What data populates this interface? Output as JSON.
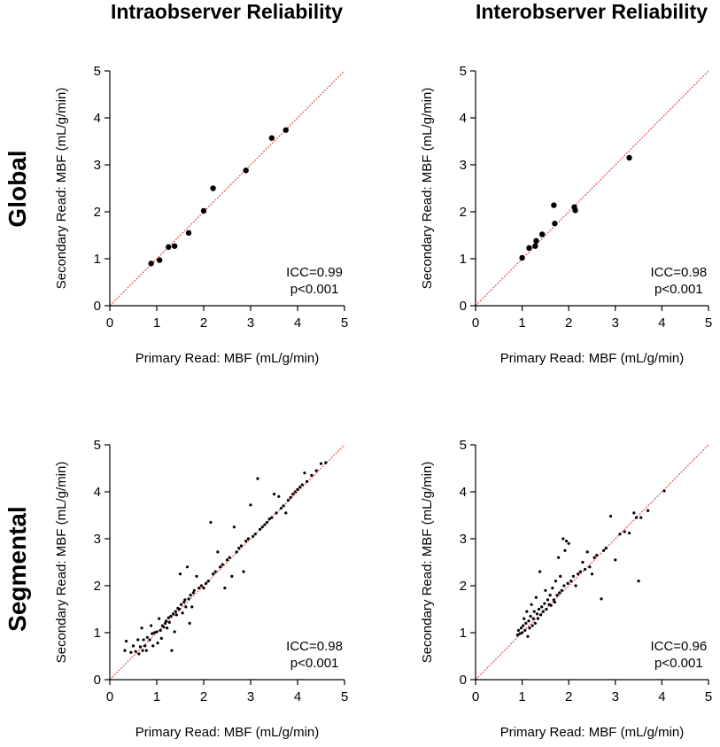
{
  "column_titles": [
    "Intraobserver Reliability",
    "Interobserver Reliability"
  ],
  "row_titles": [
    "Global",
    "Segmental"
  ],
  "chart_data": [
    {
      "type": "scatter",
      "panel": "global-intraobserver",
      "xlabel": "Primary Read: MBF (mL/g/min)",
      "ylabel": "Secondary Read: MBF (mL/g/min)",
      "xlim": [
        0,
        5
      ],
      "ylim": [
        0,
        5
      ],
      "ticks": [
        0,
        1,
        2,
        3,
        4,
        5
      ],
      "identity_line": true,
      "marker": "large",
      "annotation": [
        "ICC=0.99",
        "p<0.001"
      ],
      "points": [
        [
          0.88,
          0.9
        ],
        [
          1.06,
          0.97
        ],
        [
          1.25,
          1.25
        ],
        [
          1.38,
          1.27
        ],
        [
          1.68,
          1.55
        ],
        [
          2.0,
          2.02
        ],
        [
          2.2,
          2.5
        ],
        [
          2.9,
          2.88
        ],
        [
          3.45,
          3.57
        ],
        [
          3.75,
          3.74
        ]
      ]
    },
    {
      "type": "scatter",
      "panel": "global-interobserver",
      "xlabel": "Primary Read: MBF (mL/g/min)",
      "ylabel": "Secondary Read: MBF (mL/g/min)",
      "xlim": [
        0,
        5
      ],
      "ylim": [
        0,
        5
      ],
      "ticks": [
        0,
        1,
        2,
        3,
        4,
        5
      ],
      "identity_line": true,
      "marker": "large",
      "annotation": [
        "ICC=0.98",
        "p<0.001"
      ],
      "points": [
        [
          1.0,
          1.02
        ],
        [
          1.15,
          1.23
        ],
        [
          1.28,
          1.27
        ],
        [
          1.3,
          1.38
        ],
        [
          1.43,
          1.52
        ],
        [
          1.68,
          2.14
        ],
        [
          1.7,
          1.75
        ],
        [
          2.12,
          2.1
        ],
        [
          2.14,
          2.03
        ],
        [
          3.3,
          3.15
        ]
      ]
    },
    {
      "type": "scatter",
      "panel": "segmental-intraobserver",
      "xlabel": "Primary Read: MBF (mL/g/min)",
      "ylabel": "Secondary Read: MBF (mL/g/min)",
      "xlim": [
        0,
        5
      ],
      "ylim": [
        0,
        5
      ],
      "ticks": [
        0,
        1,
        2,
        3,
        4,
        5
      ],
      "identity_line": true,
      "marker": "small",
      "annotation": [
        "ICC=0.98",
        "p<0.001"
      ],
      "points": [
        [
          0.32,
          0.62
        ],
        [
          0.35,
          0.82
        ],
        [
          0.45,
          0.58
        ],
        [
          0.5,
          0.72
        ],
        [
          0.55,
          0.6
        ],
        [
          0.6,
          0.85
        ],
        [
          0.62,
          0.55
        ],
        [
          0.65,
          0.7
        ],
        [
          0.68,
          1.1
        ],
        [
          0.7,
          0.62
        ],
        [
          0.72,
          0.85
        ],
        [
          0.75,
          0.72
        ],
        [
          0.78,
          0.62
        ],
        [
          0.8,
          0.9
        ],
        [
          0.85,
          0.85
        ],
        [
          0.88,
          1.15
        ],
        [
          0.9,
          0.98
        ],
        [
          0.92,
          0.72
        ],
        [
          0.95,
          1.0
        ],
        [
          1.0,
          1.02
        ],
        [
          1.02,
          0.78
        ],
        [
          1.05,
          1.3
        ],
        [
          1.08,
          1.05
        ],
        [
          1.1,
          0.88
        ],
        [
          1.12,
          1.15
        ],
        [
          1.15,
          1.12
        ],
        [
          1.18,
          1.2
        ],
        [
          1.2,
          1.25
        ],
        [
          1.22,
          1.1
        ],
        [
          1.25,
          1.32
        ],
        [
          1.27,
          1.22
        ],
        [
          1.3,
          1.35
        ],
        [
          1.32,
          0.62
        ],
        [
          1.35,
          1.4
        ],
        [
          1.38,
          1.02
        ],
        [
          1.4,
          1.45
        ],
        [
          1.42,
          1.38
        ],
        [
          1.45,
          1.52
        ],
        [
          1.48,
          1.5
        ],
        [
          1.5,
          2.25
        ],
        [
          1.52,
          1.6
        ],
        [
          1.55,
          1.42
        ],
        [
          1.58,
          1.65
        ],
        [
          1.6,
          1.7
        ],
        [
          1.62,
          1.55
        ],
        [
          1.65,
          2.4
        ],
        [
          1.68,
          1.72
        ],
        [
          1.7,
          1.2
        ],
        [
          1.72,
          1.8
        ],
        [
          1.75,
          1.55
        ],
        [
          1.78,
          1.85
        ],
        [
          1.8,
          1.9
        ],
        [
          1.85,
          2.2
        ],
        [
          1.9,
          1.95
        ],
        [
          1.95,
          2.0
        ],
        [
          2.0,
          1.95
        ],
        [
          2.05,
          2.05
        ],
        [
          2.1,
          2.1
        ],
        [
          2.15,
          3.35
        ],
        [
          2.2,
          2.25
        ],
        [
          2.25,
          2.3
        ],
        [
          2.3,
          2.72
        ],
        [
          2.35,
          2.4
        ],
        [
          2.4,
          2.45
        ],
        [
          2.45,
          1.95
        ],
        [
          2.5,
          2.55
        ],
        [
          2.55,
          2.6
        ],
        [
          2.6,
          2.2
        ],
        [
          2.65,
          3.25
        ],
        [
          2.7,
          2.72
        ],
        [
          2.75,
          2.8
        ],
        [
          2.8,
          2.85
        ],
        [
          2.85,
          2.3
        ],
        [
          2.9,
          2.95
        ],
        [
          2.95,
          3.0
        ],
        [
          3.0,
          3.72
        ],
        [
          3.05,
          3.05
        ],
        [
          3.1,
          3.1
        ],
        [
          3.15,
          4.28
        ],
        [
          3.2,
          3.2
        ],
        [
          3.25,
          3.25
        ],
        [
          3.3,
          3.3
        ],
        [
          3.35,
          3.35
        ],
        [
          3.4,
          3.42
        ],
        [
          3.45,
          3.45
        ],
        [
          3.5,
          3.95
        ],
        [
          3.55,
          3.55
        ],
        [
          3.6,
          3.9
        ],
        [
          3.65,
          3.65
        ],
        [
          3.7,
          3.7
        ],
        [
          3.75,
          3.55
        ],
        [
          3.8,
          3.82
        ],
        [
          3.85,
          3.88
        ],
        [
          3.9,
          3.95
        ],
        [
          3.95,
          4.0
        ],
        [
          4.0,
          4.05
        ],
        [
          4.05,
          4.1
        ],
        [
          4.1,
          4.15
        ],
        [
          4.15,
          4.4
        ],
        [
          4.2,
          4.22
        ],
        [
          4.3,
          4.35
        ],
        [
          4.4,
          4.45
        ],
        [
          4.5,
          4.6
        ],
        [
          4.6,
          4.62
        ]
      ]
    },
    {
      "type": "scatter",
      "panel": "segmental-interobserver",
      "xlabel": "Primary Read: MBF (mL/g/min)",
      "ylabel": "Secondary Read: MBF (mL/g/min)",
      "xlim": [
        0,
        5
      ],
      "ylim": [
        0,
        5
      ],
      "ticks": [
        0,
        1,
        2,
        3,
        4,
        5
      ],
      "identity_line": true,
      "marker": "small",
      "annotation": [
        "ICC=0.96",
        "p<0.001"
      ],
      "points": [
        [
          0.9,
          0.95
        ],
        [
          0.92,
          1.05
        ],
        [
          0.95,
          0.98
        ],
        [
          0.98,
          1.1
        ],
        [
          1.0,
          1.0
        ],
        [
          1.02,
          1.15
        ],
        [
          1.04,
          1.3
        ],
        [
          1.06,
          1.05
        ],
        [
          1.08,
          1.2
        ],
        [
          1.1,
          1.45
        ],
        [
          1.12,
          0.92
        ],
        [
          1.14,
          1.25
        ],
        [
          1.16,
          1.1
        ],
        [
          1.18,
          1.35
        ],
        [
          1.2,
          1.6
        ],
        [
          1.22,
          1.15
        ],
        [
          1.24,
          1.3
        ],
        [
          1.26,
          1.45
        ],
        [
          1.28,
          1.2
        ],
        [
          1.3,
          1.75
        ],
        [
          1.32,
          1.4
        ],
        [
          1.34,
          1.3
        ],
        [
          1.36,
          1.5
        ],
        [
          1.38,
          2.3
        ],
        [
          1.4,
          1.38
        ],
        [
          1.42,
          1.55
        ],
        [
          1.45,
          1.45
        ],
        [
          1.48,
          1.62
        ],
        [
          1.5,
          1.9
        ],
        [
          1.52,
          1.5
        ],
        [
          1.55,
          1.7
        ],
        [
          1.58,
          1.6
        ],
        [
          1.6,
          1.8
        ],
        [
          1.62,
          1.58
        ],
        [
          1.65,
          1.95
        ],
        [
          1.68,
          1.7
        ],
        [
          1.7,
          1.65
        ],
        [
          1.72,
          2.1
        ],
        [
          1.75,
          1.8
        ],
        [
          1.78,
          2.6
        ],
        [
          1.8,
          1.85
        ],
        [
          1.82,
          2.2
        ],
        [
          1.85,
          1.9
        ],
        [
          1.88,
          3.0
        ],
        [
          1.9,
          2.0
        ],
        [
          1.92,
          2.75
        ],
        [
          1.95,
          2.95
        ],
        [
          1.98,
          2.05
        ],
        [
          2.0,
          2.9
        ],
        [
          2.05,
          2.1
        ],
        [
          2.1,
          2.2
        ],
        [
          2.15,
          2.0
        ],
        [
          2.2,
          2.25
        ],
        [
          2.25,
          2.3
        ],
        [
          2.3,
          2.5
        ],
        [
          2.35,
          2.35
        ],
        [
          2.4,
          2.72
        ],
        [
          2.45,
          2.4
        ],
        [
          2.5,
          2.25
        ],
        [
          2.55,
          2.6
        ],
        [
          2.6,
          2.65
        ],
        [
          2.7,
          1.72
        ],
        [
          2.75,
          2.75
        ],
        [
          2.8,
          2.8
        ],
        [
          2.9,
          3.48
        ],
        [
          3.0,
          2.55
        ],
        [
          3.1,
          3.1
        ],
        [
          3.2,
          3.15
        ],
        [
          3.3,
          3.12
        ],
        [
          3.4,
          3.55
        ],
        [
          3.45,
          3.45
        ],
        [
          3.5,
          2.1
        ],
        [
          3.55,
          3.45
        ],
        [
          3.7,
          3.6
        ],
        [
          4.05,
          4.02
        ]
      ]
    }
  ]
}
